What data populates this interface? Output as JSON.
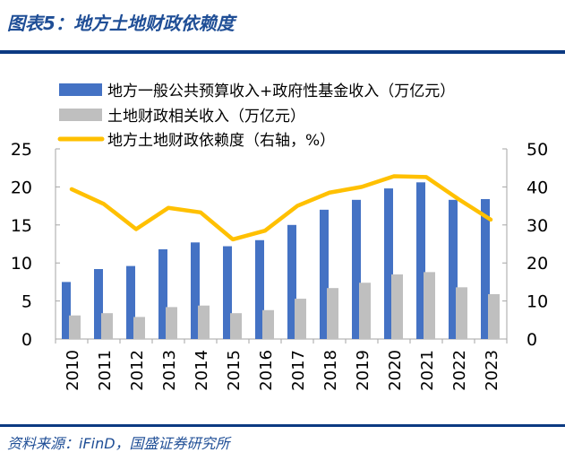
{
  "header": {
    "title": "图表5：地方土地财政依赖度"
  },
  "footer": {
    "source": "资料来源：iFinD，国盛证券研究所"
  },
  "chart_data": {
    "type": "bar+line",
    "categories": [
      "2010",
      "2011",
      "2012",
      "2013",
      "2014",
      "2015",
      "2016",
      "2017",
      "2018",
      "2019",
      "2020",
      "2021",
      "2022",
      "2023"
    ],
    "left_axis": {
      "range": [
        0,
        25
      ],
      "ticks": [
        "0",
        "5",
        "10",
        "15",
        "20",
        "25"
      ]
    },
    "right_axis": {
      "range": [
        0,
        50
      ],
      "ticks": [
        "0",
        "10",
        "20",
        "30",
        "40",
        "50"
      ]
    },
    "grid": false,
    "legend_placement": "top-left",
    "series": [
      {
        "name": "地方一般公共预算收入+政府性基金收入（万亿元）",
        "type": "bar",
        "axis": "left",
        "color": "#4472c4",
        "values": [
          7.5,
          9.2,
          9.6,
          11.8,
          12.7,
          12.2,
          13.0,
          15.0,
          17.0,
          18.3,
          19.8,
          20.6,
          18.3,
          18.4
        ]
      },
      {
        "name": "土地财政相关收入（万亿元）",
        "type": "bar",
        "axis": "left",
        "color": "#bfbfbf",
        "values": [
          3.1,
          3.4,
          2.9,
          4.2,
          4.4,
          3.4,
          3.8,
          5.3,
          6.7,
          7.4,
          8.5,
          8.8,
          6.8,
          5.9
        ]
      },
      {
        "name": "地方土地财政依赖度（右轴，%）",
        "type": "line",
        "axis": "right",
        "color": "#ffc000",
        "values": [
          39.4,
          35.5,
          28.9,
          34.5,
          33.3,
          26.2,
          28.5,
          35.0,
          38.5,
          40.0,
          42.8,
          42.6,
          36.8,
          31.4
        ]
      }
    ]
  }
}
